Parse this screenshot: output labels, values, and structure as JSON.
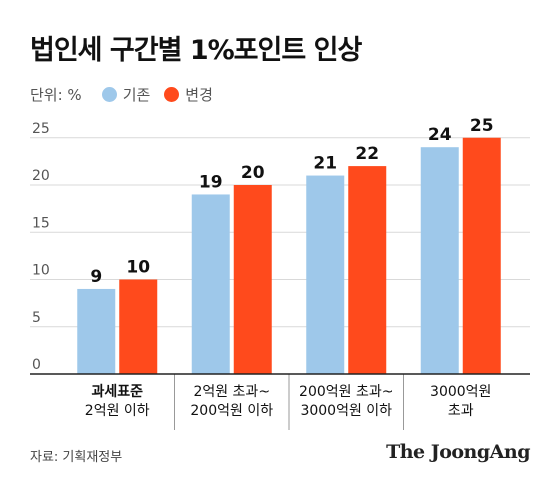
{
  "title": "법인세 구간별 1%포인트 인상",
  "legend": {
    "unit": "단위: %",
    "items": [
      {
        "label": "기존",
        "color": "#9ec8ea"
      },
      {
        "label": "변경",
        "color": "#ff4a1c"
      }
    ]
  },
  "source": "자료: 기획재정부",
  "brand": "The JoongAng",
  "chart_data": {
    "type": "bar",
    "categories": [
      [
        "과세표준",
        "2억원 이하"
      ],
      [
        "2억원 초과~",
        "200억원 이하"
      ],
      [
        "200억원 초과~",
        "3000억원 이하"
      ],
      [
        "3000억원",
        "초과"
      ]
    ],
    "bold_category_index": 0,
    "series": [
      {
        "name": "기존",
        "values": [
          9,
          19,
          21,
          24
        ],
        "color": "#9ec8ea"
      },
      {
        "name": "변경",
        "values": [
          10,
          20,
          22,
          25
        ],
        "color": "#ff4a1c"
      }
    ],
    "yticks": [
      0,
      5,
      10,
      15,
      20,
      25
    ],
    "ylim": [
      0,
      26
    ],
    "grid": true
  }
}
